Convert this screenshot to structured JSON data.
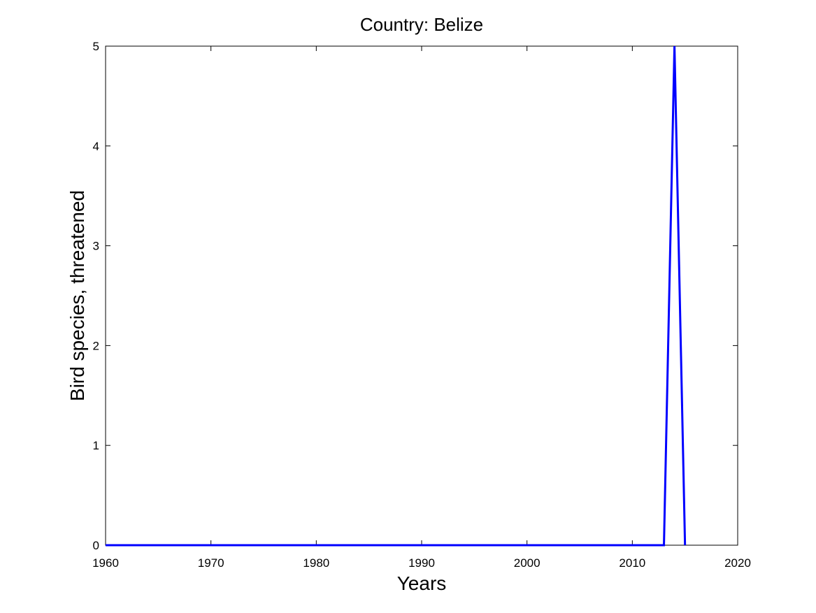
{
  "chart_data": {
    "type": "line",
    "title": "Country: Belize",
    "xlabel": "Years",
    "ylabel": "Bird species, threatened",
    "xlim": [
      1960,
      2020
    ],
    "ylim": [
      0,
      5
    ],
    "xticks": [
      1960,
      1970,
      1980,
      1990,
      2000,
      2010,
      2020
    ],
    "yticks": [
      0,
      1,
      2,
      3,
      4,
      5
    ],
    "grid": false,
    "legend": "none",
    "line_color": "#0000ff",
    "series": [
      {
        "x": [
          1960,
          1961,
          1962,
          1963,
          1964,
          1965,
          1966,
          1967,
          1968,
          1969,
          1970,
          1971,
          1972,
          1973,
          1974,
          1975,
          1976,
          1977,
          1978,
          1979,
          1980,
          1981,
          1982,
          1983,
          1984,
          1985,
          1986,
          1987,
          1988,
          1989,
          1990,
          1991,
          1992,
          1993,
          1994,
          1995,
          1996,
          1997,
          1998,
          1999,
          2000,
          2001,
          2002,
          2003,
          2004,
          2005,
          2006,
          2007,
          2008,
          2009,
          2010,
          2011,
          2012,
          2013,
          2014,
          2015
        ],
        "y": [
          0,
          0,
          0,
          0,
          0,
          0,
          0,
          0,
          0,
          0,
          0,
          0,
          0,
          0,
          0,
          0,
          0,
          0,
          0,
          0,
          0,
          0,
          0,
          0,
          0,
          0,
          0,
          0,
          0,
          0,
          0,
          0,
          0,
          0,
          0,
          0,
          0,
          0,
          0,
          0,
          0,
          0,
          0,
          0,
          0,
          0,
          0,
          0,
          0,
          0,
          0,
          0,
          0,
          0,
          5,
          0
        ]
      }
    ]
  }
}
